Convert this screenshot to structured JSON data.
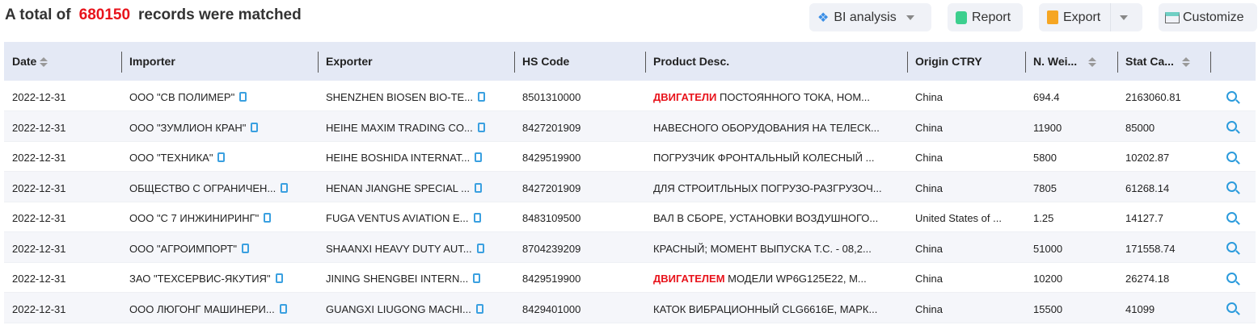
{
  "header": {
    "prefix": "A total of",
    "count": "680150",
    "suffix": "records were matched"
  },
  "toolbar": {
    "bi": "BI analysis",
    "report": "Report",
    "export": "Export",
    "customize": "Customize"
  },
  "columns": [
    "Date",
    "Importer",
    "Exporter",
    "HS Code",
    "Product Desc.",
    "Origin CTRY",
    "N. Wei...",
    "Stat Ca..."
  ],
  "rows": [
    {
      "date": "2022-12-31",
      "importer": "ООО \"СВ ПОЛИМЕР\"",
      "exporter": "SHENZHEN BIOSEN BIO-TE...",
      "hs": "8501310000",
      "desc_hl": "ДВИГАТЕЛИ",
      "desc": " ПОСТОЯННОГО ТОКА, НОМ...",
      "origin": "China",
      "weight": "694.4",
      "stat": "2163060.81"
    },
    {
      "date": "2022-12-31",
      "importer": "ООО \"ЗУМЛИОН КРАН\"",
      "exporter": "HEIHE MAXIM TRADING CO...",
      "hs": "8427201909",
      "desc_hl": "",
      "desc": "НАВЕСНОГО ОБОРУДОВАНИЯ НА ТЕЛЕСК...",
      "origin": "China",
      "weight": "11900",
      "stat": "85000"
    },
    {
      "date": "2022-12-31",
      "importer": "ООО \"ТЕХНИКА\"",
      "exporter": "HEIHE BOSHIDA INTERNAT...",
      "hs": "8429519900",
      "desc_hl": "",
      "desc": "ПОГРУЗЧИК ФРОНТАЛЬНЫЙ КОЛЕСНЫЙ ...",
      "origin": "China",
      "weight": "5800",
      "stat": "10202.87"
    },
    {
      "date": "2022-12-31",
      "importer": "ОБЩЕСТВО С ОГРАНИЧЕН...",
      "exporter": "HENAN JIANGHE SPECIAL ...",
      "hs": "8427201909",
      "desc_hl": "",
      "desc": "ДЛЯ СТРОИТЛЬНЫХ ПОГРУЗО-РАЗГРУЗОЧ...",
      "origin": "China",
      "weight": "7805",
      "stat": "61268.14"
    },
    {
      "date": "2022-12-31",
      "importer": "ООО \"С 7 ИНЖИНИРИНГ\"",
      "exporter": "FUGA VENTUS AVIATION E...",
      "hs": "8483109500",
      "desc_hl": "",
      "desc": "ВАЛ В СБОРЕ, УСТАНОВКИ ВОЗДУШНОГО...",
      "origin": "United States of ...",
      "weight": "1.25",
      "stat": "14127.7"
    },
    {
      "date": "2022-12-31",
      "importer": "ООО \"АГРОИМПОРТ\"",
      "exporter": "SHAANXI HEAVY DUTY AUT...",
      "hs": "8704239209",
      "desc_hl": "",
      "desc": "КРАСНЫЙ; МОМЕНТ ВЫПУСКА Т.С. - 08,2...",
      "origin": "China",
      "weight": "51000",
      "stat": "171558.74"
    },
    {
      "date": "2022-12-31",
      "importer": "ЗАО \"ТЕХСЕРВИС-ЯКУТИЯ\"",
      "exporter": "JINING SHENGBEI INTERN...",
      "hs": "8429519900",
      "desc_hl": "ДВИГАТЕЛЕМ",
      "desc": " МОДЕЛИ WP6G125E22, М...",
      "origin": "China",
      "weight": "10200",
      "stat": "26274.18"
    },
    {
      "date": "2022-12-31",
      "importer": "ООО ЛЮГОНГ МАШИНЕРИ...",
      "exporter": "GUANGXI LIUGONG MACHI...",
      "hs": "8429401000",
      "desc_hl": "",
      "desc": "КАТОК ВИБРАЦИОННЫЙ CLG6616E, МАРК...",
      "origin": "China",
      "weight": "15500",
      "stat": "41099"
    }
  ]
}
